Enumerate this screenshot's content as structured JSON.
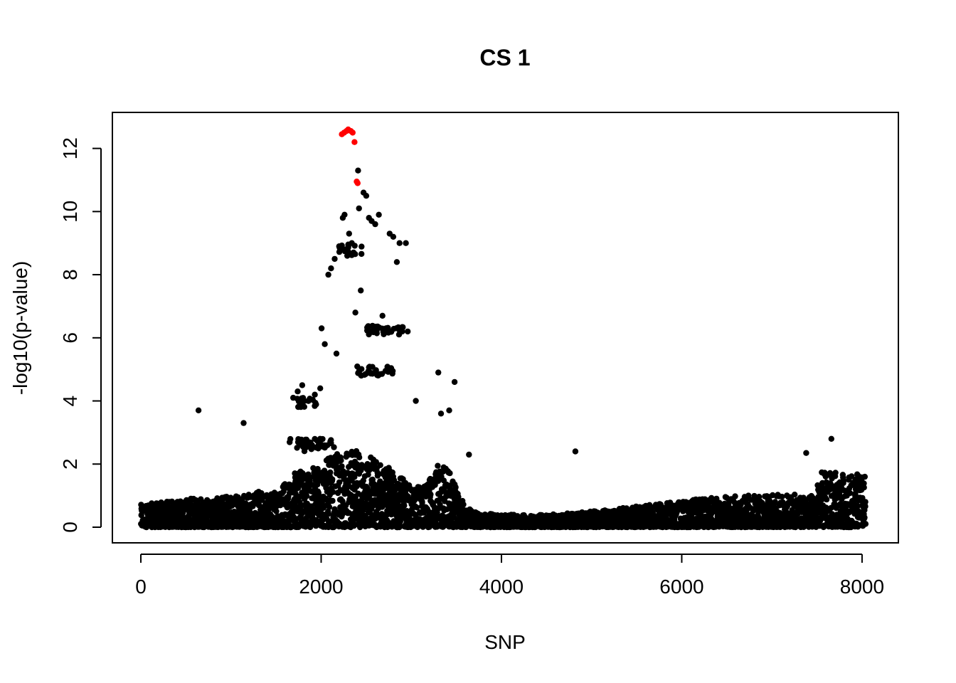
{
  "chart_data": {
    "type": "scatter",
    "title": "CS 1",
    "xlabel": "SNP",
    "ylabel": "-log10(p-value)",
    "xlim": [
      0,
      8040
    ],
    "ylim": [
      0,
      12.6
    ],
    "x_ticks": [
      0,
      2000,
      4000,
      6000,
      8000
    ],
    "y_ticks": [
      0,
      2,
      4,
      6,
      8,
      10,
      12
    ],
    "x_tick_labels": [
      "0",
      "2000",
      "4000",
      "6000",
      "8000"
    ],
    "y_tick_labels": [
      "0",
      "2",
      "4",
      "6",
      "8",
      "10",
      "12"
    ],
    "grid": false,
    "legend": "none",
    "colors": {
      "points": "#000000",
      "credible_set": "#ff0000"
    },
    "n_snps": 8040,
    "credible_set": {
      "x": [
        2230,
        2255,
        2280,
        2300,
        2330,
        2350,
        2370,
        2395,
        2405
      ],
      "y": [
        12.45,
        12.5,
        12.55,
        12.6,
        12.55,
        12.5,
        12.2,
        10.95,
        10.9
      ]
    },
    "series": [
      {
        "x": [
          640,
          1140,
          1690,
          1740,
          1790,
          1860,
          1930,
          1990,
          2005,
          2040,
          2080,
          2110,
          2150,
          2170,
          2200,
          2240,
          2260,
          2290,
          2310,
          2340,
          2360,
          2380,
          2410,
          2420,
          2440,
          2470,
          2500,
          2530,
          2560,
          2600,
          2640,
          2680,
          2720,
          2760,
          2800,
          2840,
          2870,
          2900,
          2940,
          2960,
          3050,
          3300,
          3330,
          3420,
          3480,
          3640,
          4820,
          7380,
          7660
        ],
        "y": [
          3.7,
          3.3,
          4.1,
          4.3,
          4.5,
          4.0,
          4.2,
          4.4,
          6.3,
          5.8,
          8.0,
          8.2,
          8.5,
          5.5,
          8.9,
          9.8,
          9.9,
          8.6,
          9.3,
          9.0,
          8.7,
          6.8,
          11.3,
          10.1,
          7.5,
          10.6,
          10.5,
          9.8,
          9.7,
          9.6,
          9.9,
          6.7,
          6.3,
          9.3,
          9.2,
          8.4,
          9.0,
          6.2,
          9.0,
          6.2,
          4.0,
          4.9,
          3.6,
          3.7,
          4.6,
          2.3,
          2.4,
          2.35,
          2.8
        ]
      }
    ]
  }
}
